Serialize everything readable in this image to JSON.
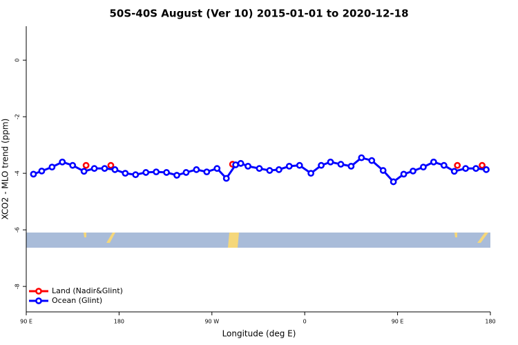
{
  "chart_data": {
    "type": "line",
    "title": "50S-40S August (Ver 10)   2015-01-01 to 2020-12-18",
    "x_label": "Longitude (deg E)",
    "y_label": "XCO2 - MLO trend (ppm)",
    "xlim": [
      90,
      540
    ],
    "ylim": [
      -8.9,
      1.2
    ],
    "xticks": [
      {
        "value": 90,
        "label": "90 E"
      },
      180,
      {
        "value": 270,
        "label": "90 W"
      },
      {
        "value": 360,
        "label": "0"
      },
      {
        "value": 450,
        "label": "90 E"
      },
      {
        "value": 540,
        "label": "180"
      }
    ],
    "yticks": [
      0,
      -2,
      -4,
      -6,
      -8
    ],
    "legend": "bottom-left",
    "series": [
      {
        "name": "Land (Nadir&Glint)",
        "color": "#ff0000",
        "markers_only": true,
        "x": [
          148,
          172,
          290,
          508,
          532
        ],
        "values": [
          -3.72,
          -3.72,
          -3.68,
          -3.72,
          -3.72
        ]
      },
      {
        "name": "Ocean (Glint)",
        "color": "#0000ff",
        "x": [
          97,
          105,
          115,
          125,
          135,
          146,
          156,
          166,
          176,
          186,
          196,
          206,
          216,
          226,
          236,
          245,
          255,
          265,
          275,
          284,
          293,
          298,
          305,
          316,
          326,
          335,
          345,
          355,
          366,
          376,
          385,
          395,
          405,
          415,
          425,
          436,
          446,
          456,
          465,
          475,
          485,
          495,
          505,
          516,
          526,
          536
        ],
        "values": [
          -4.03,
          -3.92,
          -3.78,
          -3.6,
          -3.72,
          -3.93,
          -3.83,
          -3.83,
          -3.87,
          -4.0,
          -4.05,
          -3.97,
          -3.95,
          -3.97,
          -4.07,
          -3.97,
          -3.87,
          -3.95,
          -3.83,
          -4.18,
          -3.7,
          -3.65,
          -3.75,
          -3.83,
          -3.9,
          -3.87,
          -3.75,
          -3.72,
          -4.0,
          -3.72,
          -3.6,
          -3.68,
          -3.75,
          -3.45,
          -3.55,
          -3.9,
          -4.3,
          -4.03,
          -3.92,
          -3.78,
          -3.6,
          -3.72,
          -3.93,
          -3.83,
          -3.83,
          -3.87
        ]
      }
    ]
  }
}
